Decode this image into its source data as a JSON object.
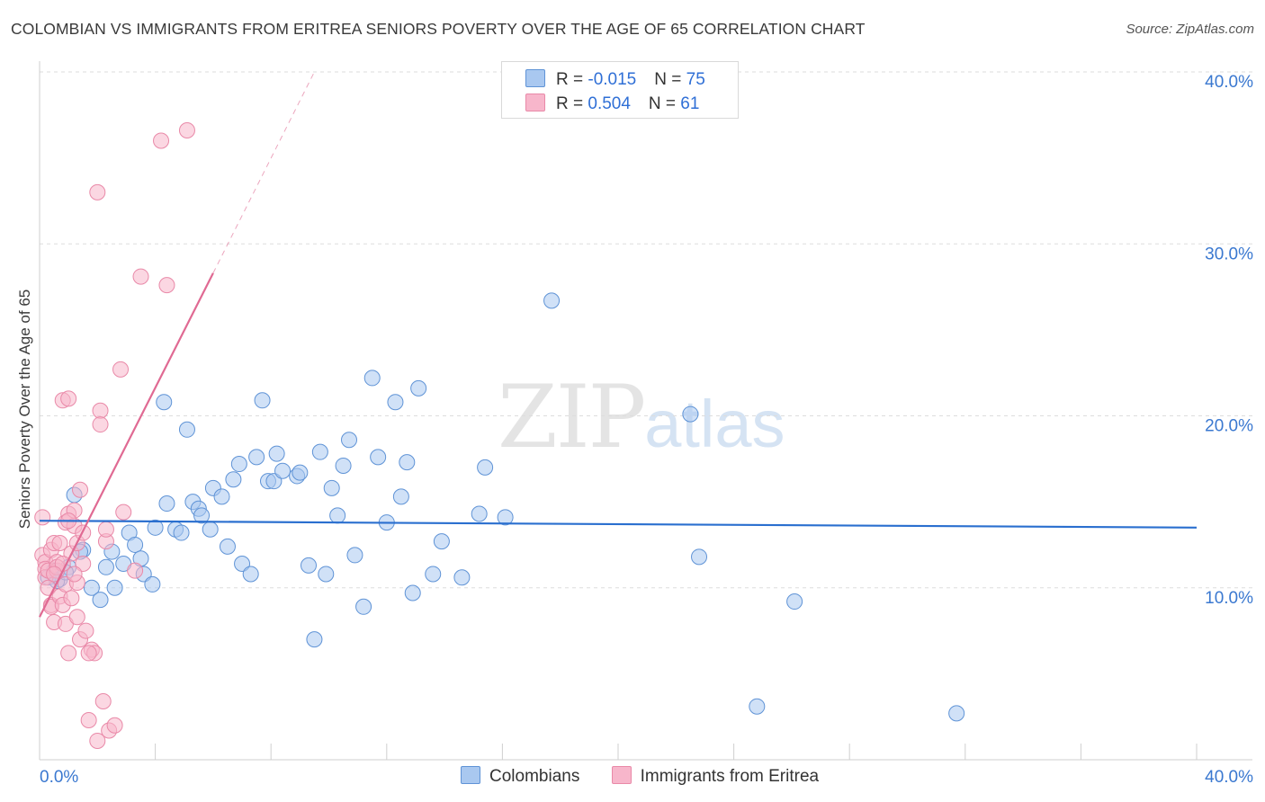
{
  "title": "COLOMBIAN VS IMMIGRANTS FROM ERITREA SENIORS POVERTY OVER THE AGE OF 65 CORRELATION CHART",
  "source": "Source: ZipAtlas.com",
  "watermark": {
    "zip": "ZIP",
    "atlas": "atlas"
  },
  "legend": {
    "rows": [
      {
        "r_label": "R = ",
        "r_value": "-0.015",
        "n_label": "N = ",
        "n_value": "75"
      },
      {
        "r_label": "R = ",
        "r_value": " 0.504",
        "n_label": "N = ",
        "n_value": "61"
      }
    ]
  },
  "colors": {
    "blue_fill": "#a9c8f0",
    "blue_stroke": "#5f93d6",
    "blue_line": "#2a6fcf",
    "pink_fill": "#f7b6cb",
    "pink_stroke": "#e989a8",
    "pink_line": "#e06a93",
    "tick_text": "#3a78d0",
    "grid": "#dddddd"
  },
  "chart_data": {
    "type": "scatter",
    "title": "COLOMBIAN VS IMMIGRANTS FROM ERITREA SENIORS POVERTY OVER THE AGE OF 65 CORRELATION CHART",
    "xlabel": "",
    "ylabel": "Seniors Poverty Over the Age of 65",
    "xlim": [
      0,
      40
    ],
    "ylim": [
      0,
      40
    ],
    "x_tick_labels": [
      "0.0%",
      "40.0%"
    ],
    "y_ticks": [
      10,
      20,
      30,
      40
    ],
    "y_tick_labels": [
      "10.0%",
      "20.0%",
      "30.0%",
      "40.0%"
    ],
    "series": [
      {
        "name": "Colombians",
        "trend": {
          "x": [
            0,
            40
          ],
          "y": [
            13.9,
            13.5
          ],
          "dashed_extension": false
        },
        "points": [
          [
            0.5,
            11.0
          ],
          [
            0.7,
            10.5
          ],
          [
            1.0,
            11.2
          ],
          [
            1.2,
            15.4
          ],
          [
            1.5,
            12.2
          ],
          [
            1.8,
            10.0
          ],
          [
            2.1,
            9.3
          ],
          [
            2.3,
            11.2
          ],
          [
            2.5,
            12.1
          ],
          [
            2.6,
            10.0
          ],
          [
            2.9,
            11.4
          ],
          [
            3.1,
            13.2
          ],
          [
            3.3,
            12.5
          ],
          [
            3.5,
            11.7
          ],
          [
            3.6,
            10.8
          ],
          [
            3.9,
            10.2
          ],
          [
            4.0,
            13.5
          ],
          [
            4.3,
            20.8
          ],
          [
            4.4,
            14.9
          ],
          [
            4.7,
            13.4
          ],
          [
            4.9,
            13.2
          ],
          [
            5.1,
            19.2
          ],
          [
            5.3,
            15.0
          ],
          [
            5.5,
            14.6
          ],
          [
            5.6,
            14.2
          ],
          [
            5.9,
            13.4
          ],
          [
            6.0,
            15.8
          ],
          [
            6.3,
            15.3
          ],
          [
            6.5,
            12.4
          ],
          [
            6.7,
            16.3
          ],
          [
            6.9,
            17.2
          ],
          [
            7.0,
            11.4
          ],
          [
            7.3,
            10.8
          ],
          [
            7.5,
            17.6
          ],
          [
            7.7,
            20.9
          ],
          [
            7.9,
            16.2
          ],
          [
            8.1,
            16.2
          ],
          [
            8.2,
            17.8
          ],
          [
            8.4,
            16.8
          ],
          [
            8.9,
            16.5
          ],
          [
            9.0,
            16.7
          ],
          [
            9.3,
            11.3
          ],
          [
            9.5,
            7.0
          ],
          [
            9.7,
            17.9
          ],
          [
            9.9,
            10.8
          ],
          [
            10.1,
            15.8
          ],
          [
            10.3,
            14.2
          ],
          [
            10.5,
            17.1
          ],
          [
            10.7,
            18.6
          ],
          [
            10.9,
            11.9
          ],
          [
            11.2,
            8.9
          ],
          [
            11.5,
            22.2
          ],
          [
            11.7,
            17.6
          ],
          [
            12.0,
            13.8
          ],
          [
            12.3,
            20.8
          ],
          [
            12.5,
            15.3
          ],
          [
            12.7,
            17.3
          ],
          [
            12.9,
            9.7
          ],
          [
            13.1,
            21.6
          ],
          [
            13.6,
            10.8
          ],
          [
            13.9,
            12.7
          ],
          [
            14.6,
            10.6
          ],
          [
            15.2,
            14.3
          ],
          [
            15.4,
            17.0
          ],
          [
            16.1,
            14.1
          ],
          [
            17.7,
            26.7
          ],
          [
            22.5,
            20.1
          ],
          [
            22.8,
            11.8
          ],
          [
            24.8,
            3.1
          ],
          [
            26.1,
            9.2
          ],
          [
            31.7,
            2.7
          ],
          [
            0.3,
            10.6
          ],
          [
            0.6,
            10.4
          ],
          [
            0.9,
            10.9
          ],
          [
            1.4,
            12.1
          ]
        ]
      },
      {
        "name": "Immigrants from Eritrea",
        "trend": {
          "x": [
            0,
            6.0
          ],
          "y": [
            8.3,
            28.3
          ],
          "dashed_extension": true,
          "dash_to": [
            9.5,
            40
          ]
        },
        "points": [
          [
            0.1,
            14.1
          ],
          [
            0.1,
            11.9
          ],
          [
            0.2,
            11.5
          ],
          [
            0.2,
            11.1
          ],
          [
            0.2,
            10.6
          ],
          [
            0.3,
            11.0
          ],
          [
            0.3,
            10.0
          ],
          [
            0.4,
            9.0
          ],
          [
            0.4,
            12.2
          ],
          [
            0.4,
            8.9
          ],
          [
            0.5,
            12.6
          ],
          [
            0.5,
            8.0
          ],
          [
            0.6,
            11.5
          ],
          [
            0.6,
            11.0
          ],
          [
            0.7,
            12.6
          ],
          [
            0.7,
            9.5
          ],
          [
            0.8,
            20.9
          ],
          [
            0.8,
            9.0
          ],
          [
            0.9,
            7.9
          ],
          [
            0.9,
            13.8
          ],
          [
            0.9,
            10.2
          ],
          [
            1.0,
            21.0
          ],
          [
            1.0,
            14.3
          ],
          [
            1.0,
            6.2
          ],
          [
            1.1,
            12.0
          ],
          [
            1.1,
            9.4
          ],
          [
            1.2,
            13.6
          ],
          [
            1.2,
            14.5
          ],
          [
            1.3,
            12.6
          ],
          [
            1.3,
            8.3
          ],
          [
            1.3,
            10.3
          ],
          [
            1.4,
            15.7
          ],
          [
            1.4,
            7.0
          ],
          [
            1.5,
            13.2
          ],
          [
            1.5,
            11.4
          ],
          [
            1.6,
            7.5
          ],
          [
            1.7,
            2.3
          ],
          [
            1.8,
            6.4
          ],
          [
            1.9,
            6.2
          ],
          [
            2.0,
            1.1
          ],
          [
            2.0,
            33.0
          ],
          [
            2.1,
            20.3
          ],
          [
            2.1,
            19.5
          ],
          [
            2.2,
            3.4
          ],
          [
            2.3,
            12.7
          ],
          [
            2.3,
            13.4
          ],
          [
            2.4,
            1.7
          ],
          [
            2.6,
            2.0
          ],
          [
            2.8,
            22.7
          ],
          [
            2.9,
            14.4
          ],
          [
            3.3,
            11.0
          ],
          [
            3.5,
            28.1
          ],
          [
            4.2,
            36.0
          ],
          [
            4.4,
            27.6
          ],
          [
            5.1,
            36.6
          ],
          [
            1.7,
            6.2
          ],
          [
            1.0,
            13.9
          ],
          [
            1.2,
            10.8
          ],
          [
            0.6,
            11.2
          ],
          [
            0.8,
            11.4
          ],
          [
            0.5,
            10.8
          ]
        ]
      }
    ],
    "legend": [
      {
        "label": "Colombians",
        "color": "#a9c8f0"
      },
      {
        "label": "Immigrants from Eritrea",
        "color": "#f7b6cb"
      }
    ]
  }
}
